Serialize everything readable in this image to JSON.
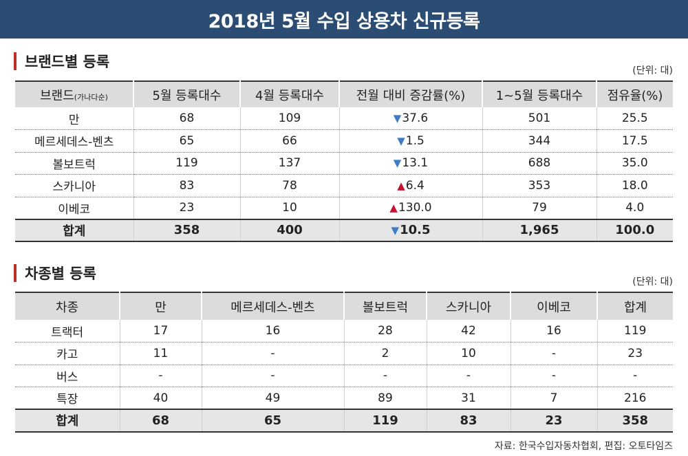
{
  "title": "2018년 5월 수입 상용차 신규등록",
  "brand_section": {
    "heading": "브랜드별 등록",
    "unit": "(단위: 대)",
    "headers": {
      "brand": "브랜드",
      "brand_note": "(가나다순)",
      "may": "5월 등록대수",
      "april": "4월 등록대수",
      "change": "전월 대비 증감률(%)",
      "ytd": "1~5월 등록대수",
      "share": "점유율(%)"
    },
    "rows": [
      {
        "brand": "만",
        "may": "68",
        "april": "109",
        "dir": "▼",
        "change": "37.6",
        "ytd": "501",
        "share": "25.5"
      },
      {
        "brand": "메르세데스-벤츠",
        "may": "65",
        "april": "66",
        "dir": "▼",
        "change": "1.5",
        "ytd": "344",
        "share": "17.5"
      },
      {
        "brand": "볼보트럭",
        "may": "119",
        "april": "137",
        "dir": "▼",
        "change": "13.1",
        "ytd": "688",
        "share": "35.0"
      },
      {
        "brand": "스카니아",
        "may": "83",
        "april": "78",
        "dir": "▲",
        "change": "6.4",
        "ytd": "353",
        "share": "18.0"
      },
      {
        "brand": "이베코",
        "may": "23",
        "april": "10",
        "dir": "▲",
        "change": "130.0",
        "ytd": "79",
        "share": "4.0"
      }
    ],
    "total": {
      "brand": "합계",
      "may": "358",
      "april": "400",
      "dir": "▼",
      "change": "10.5",
      "ytd": "1,965",
      "share": "100.0"
    }
  },
  "type_section": {
    "heading": "차종별 등록",
    "unit": "(단위: 대)",
    "headers": [
      "차종",
      "만",
      "메르세데스-벤츠",
      "볼보트럭",
      "스카니아",
      "이베코",
      "합계"
    ],
    "rows": [
      [
        "트랙터",
        "17",
        "16",
        "28",
        "42",
        "16",
        "119"
      ],
      [
        "카고",
        "11",
        "-",
        "2",
        "10",
        "-",
        "23"
      ],
      [
        "버스",
        "-",
        "-",
        "-",
        "-",
        "-",
        "-"
      ],
      [
        "특장",
        "40",
        "49",
        "89",
        "31",
        "7",
        "216"
      ]
    ],
    "total": [
      "합계",
      "68",
      "65",
      "119",
      "83",
      "23",
      "358"
    ]
  },
  "source": "자료: 한국수입자동차협회,   편집: 오토타임즈"
}
